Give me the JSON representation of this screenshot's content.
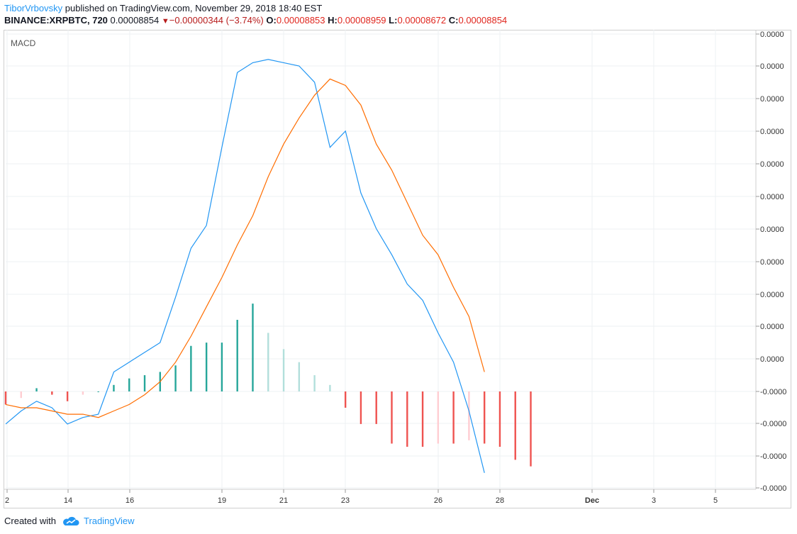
{
  "header": {
    "author": "TiborVrbovsky",
    "published_text": "published on TradingView.com, November 29, 2018 18:40 EST",
    "symbol": "BINANCE:XRPBTC, 720",
    "last_price": "0.00008854",
    "change_arrow_icon": "down-triangle-icon",
    "change": "−0.00000344 (−3.74%)",
    "open_label": "O:",
    "open_value": "0.00008853",
    "high_label": "H:",
    "high_value": "0.00008959",
    "low_label": "L:",
    "low_value": "0.00008672",
    "close_label": "C:",
    "close_value": "0.00008854"
  },
  "footer": {
    "created_with": "Created with",
    "brand": "TradingView",
    "logo_icon": "tradingview-cloud-icon"
  },
  "colors": {
    "macd_line": "#2196f3",
    "signal_line": "#ff6d00",
    "hist_pos_strong": "#26a69a",
    "hist_pos_weak": "#b2dfdb",
    "hist_neg_strong": "#ef5350",
    "hist_neg_weak": "#ffcdd2",
    "grid": "#eef0f3",
    "author": "#2196f3",
    "ohlc_value": "#e0261e"
  },
  "chart_data": {
    "type": "line",
    "title": "MACD",
    "x_tick_labels": [
      "2",
      "14",
      "16",
      "19",
      "21",
      "23",
      "26",
      "28",
      "Dec",
      "3",
      "5"
    ],
    "y_tick_labels": [
      "0.0000",
      "0.0000",
      "0.0000",
      "0.0000",
      "0.0000",
      "0.0000",
      "0.0000",
      "0.0000",
      "0.0000",
      "0.0000",
      "0.0000",
      "-0.0000",
      "-0.0000",
      "-0.0000",
      "-0.0000",
      "-0.0000"
    ],
    "ylim": [
      -3.0,
      11.0
    ],
    "grid": true,
    "series": [
      {
        "type": "line",
        "values": [
          -1.0,
          -0.6,
          -0.3,
          -0.5,
          -1.0,
          -0.8,
          -0.7,
          0.6,
          0.9,
          1.2,
          1.5,
          2.9,
          4.4,
          5.1,
          7.5,
          9.8,
          10.1,
          10.2,
          10.1,
          10.0,
          9.5,
          7.5,
          8.0,
          6.1,
          5.0,
          4.2,
          3.3,
          2.8,
          1.8,
          0.9,
          -0.6,
          -2.5
        ]
      },
      {
        "type": "line",
        "values": [
          -0.4,
          -0.5,
          -0.5,
          -0.6,
          -0.7,
          -0.7,
          -0.8,
          -0.6,
          -0.4,
          -0.1,
          0.3,
          0.9,
          1.7,
          2.6,
          3.5,
          4.5,
          5.4,
          6.6,
          7.6,
          8.4,
          9.1,
          9.6,
          9.4,
          8.8,
          7.6,
          6.8,
          5.8,
          4.8,
          4.2,
          3.2,
          2.3,
          0.6
        ]
      },
      {
        "type": "bar",
        "values": [
          -0.4,
          -0.2,
          0.1,
          -0.1,
          -0.3,
          -0.1,
          0.0,
          0.2,
          0.4,
          0.5,
          0.6,
          0.8,
          1.4,
          1.5,
          1.5,
          2.2,
          2.7,
          1.8,
          1.3,
          0.9,
          0.5,
          0.2,
          -0.5,
          -1.0,
          -1.0,
          -1.6,
          -1.7,
          -1.7,
          -1.6,
          -1.6,
          -1.5,
          -1.6,
          -1.7,
          -2.1,
          -2.3
        ]
      }
    ]
  }
}
